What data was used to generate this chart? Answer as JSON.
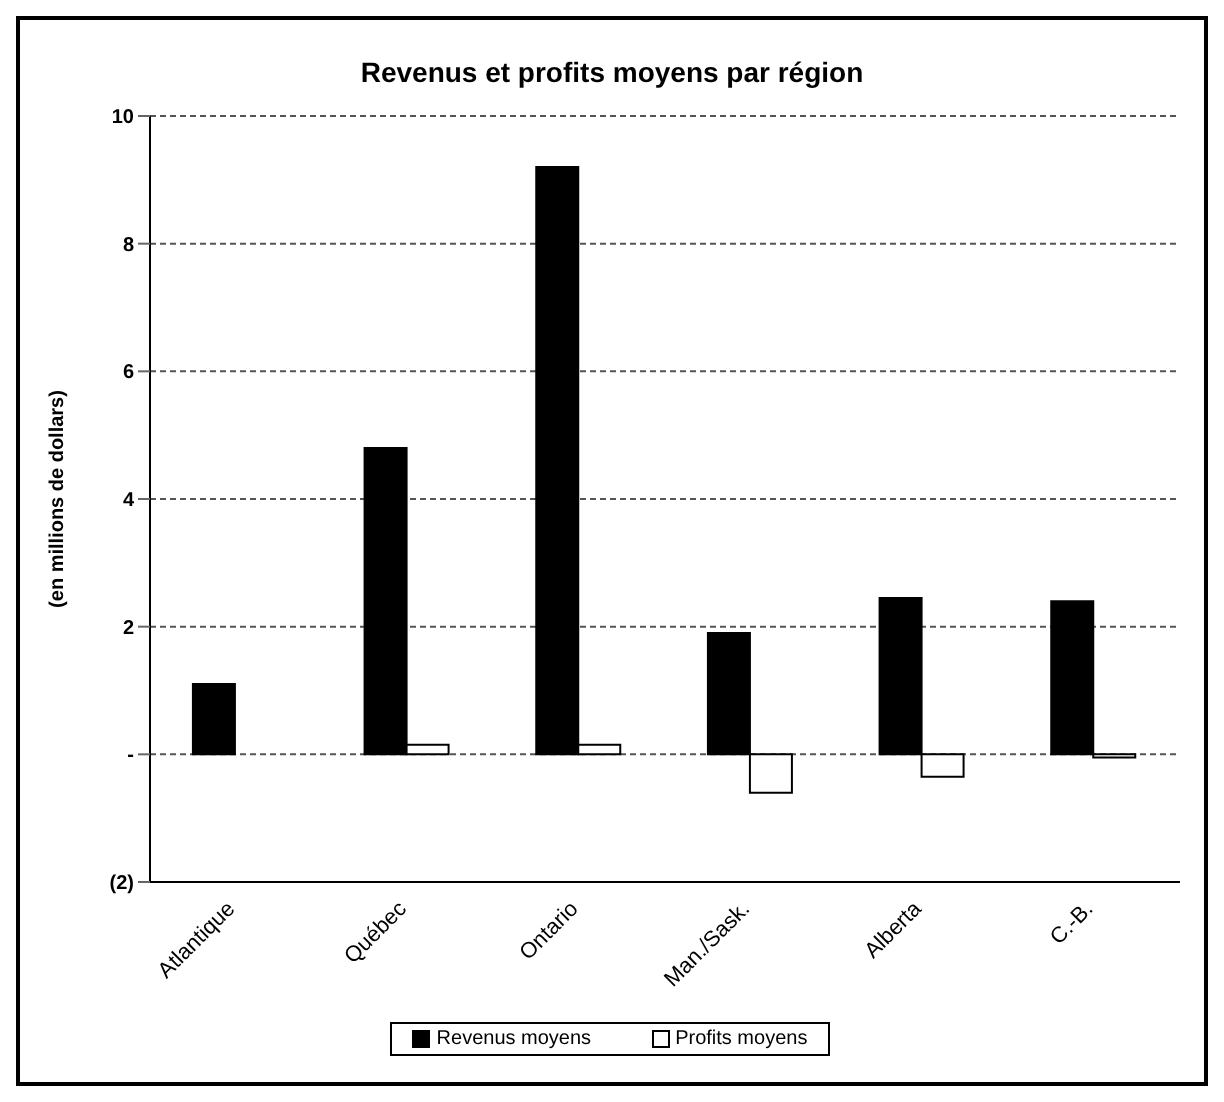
{
  "chart_data": {
    "type": "bar",
    "title": "Revenus et profits moyens par région",
    "ylabel": "(en millions de dollars)",
    "categories": [
      "Atlantique",
      "Québec",
      "Ontario",
      "Man./Sask.",
      "Alberta",
      "C.-B."
    ],
    "series": [
      {
        "name": "Revenus moyens",
        "color": "#000000",
        "values": [
          1.1,
          4.8,
          9.2,
          1.9,
          2.45,
          2.4
        ]
      },
      {
        "name": "Profits moyens",
        "color": "#ffffff",
        "values": [
          0,
          0.15,
          0.15,
          -0.6,
          -0.35,
          -0.05
        ]
      }
    ],
    "ylim": [
      -2,
      10
    ],
    "yticks": [
      {
        "value": -2,
        "label": "(2)"
      },
      {
        "value": 0,
        "label": "-"
      },
      2,
      4,
      6,
      8,
      10
    ],
    "grid": "y",
    "legend": "bottom"
  }
}
